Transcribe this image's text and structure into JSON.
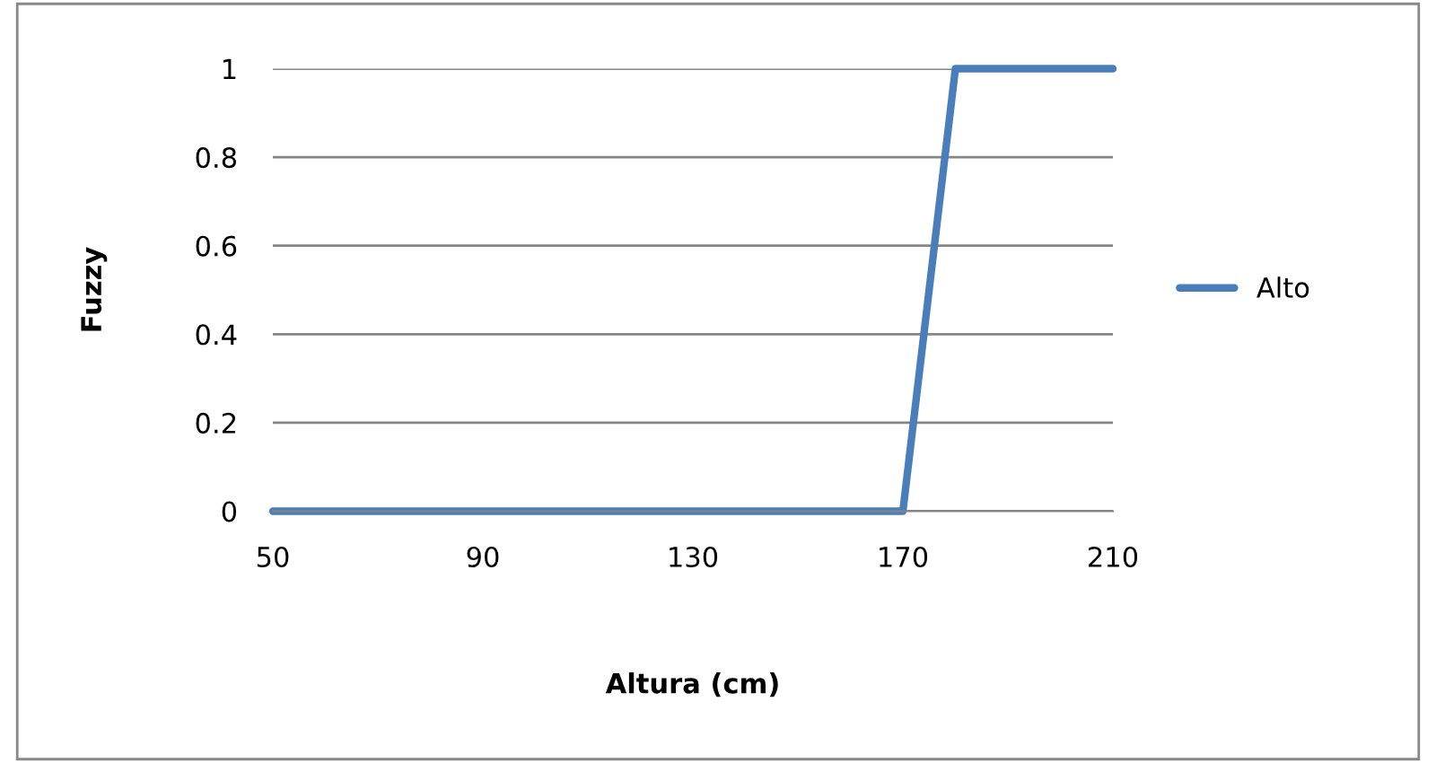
{
  "chart_data": {
    "type": "line",
    "xlabel": "Altura (cm)",
    "ylabel": "Fuzzy",
    "series": [
      {
        "name": "Alto",
        "color": "#4a7ebb",
        "x": [
          50,
          170,
          180,
          210
        ],
        "values": [
          0,
          0,
          1,
          1
        ]
      }
    ],
    "xlim": [
      50,
      210
    ],
    "xticks": [
      50,
      90,
      130,
      170,
      210
    ],
    "ylim": [
      0,
      1
    ],
    "yticks": [
      0,
      0.2,
      0.4,
      0.6,
      0.8,
      1
    ],
    "grid": "y",
    "legend": "right",
    "marker": "none",
    "line_style": "solid"
  }
}
